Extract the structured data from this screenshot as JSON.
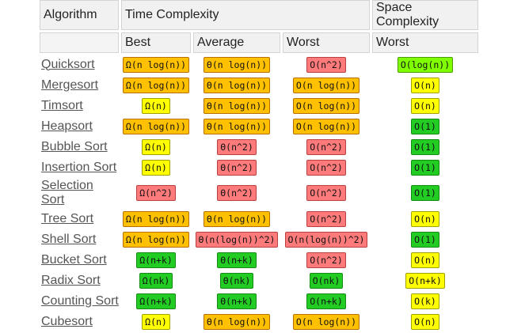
{
  "headers": {
    "algorithm": "Algorithm",
    "time_complexity": "Time Complexity",
    "space_complexity": "Space Complexity",
    "best": "Best",
    "average": "Average",
    "worst": "Worst",
    "space_worst": "Worst"
  },
  "colors": {
    "orange": "#ffc000",
    "yellow": "#ffff00",
    "red": "#ff7a7a",
    "green": "#22cc22",
    "lime": "#80ff00"
  },
  "rows": [
    {
      "name": "Quicksort",
      "best": {
        "v": "Ω(n log(n))",
        "c": "orange"
      },
      "average": {
        "v": "Θ(n log(n))",
        "c": "orange"
      },
      "worst": {
        "v": "O(n^2)",
        "c": "red"
      },
      "space": {
        "v": "O(log(n))",
        "c": "lime"
      }
    },
    {
      "name": "Mergesort",
      "best": {
        "v": "Ω(n log(n))",
        "c": "orange"
      },
      "average": {
        "v": "Θ(n log(n))",
        "c": "orange"
      },
      "worst": {
        "v": "O(n log(n))",
        "c": "orange"
      },
      "space": {
        "v": "O(n)",
        "c": "yellow"
      }
    },
    {
      "name": "Timsort",
      "best": {
        "v": "Ω(n)",
        "c": "yellow"
      },
      "average": {
        "v": "Θ(n log(n))",
        "c": "orange"
      },
      "worst": {
        "v": "O(n log(n))",
        "c": "orange"
      },
      "space": {
        "v": "O(n)",
        "c": "yellow"
      }
    },
    {
      "name": "Heapsort",
      "best": {
        "v": "Ω(n log(n))",
        "c": "orange"
      },
      "average": {
        "v": "Θ(n log(n))",
        "c": "orange"
      },
      "worst": {
        "v": "O(n log(n))",
        "c": "orange"
      },
      "space": {
        "v": "O(1)",
        "c": "green"
      }
    },
    {
      "name": "Bubble Sort",
      "best": {
        "v": "Ω(n)",
        "c": "yellow"
      },
      "average": {
        "v": "Θ(n^2)",
        "c": "red"
      },
      "worst": {
        "v": "O(n^2)",
        "c": "red"
      },
      "space": {
        "v": "O(1)",
        "c": "green"
      }
    },
    {
      "name": "Insertion Sort",
      "best": {
        "v": "Ω(n)",
        "c": "yellow"
      },
      "average": {
        "v": "Θ(n^2)",
        "c": "red"
      },
      "worst": {
        "v": "O(n^2)",
        "c": "red"
      },
      "space": {
        "v": "O(1)",
        "c": "green"
      }
    },
    {
      "name": "Selection Sort",
      "best": {
        "v": "Ω(n^2)",
        "c": "red"
      },
      "average": {
        "v": "Θ(n^2)",
        "c": "red"
      },
      "worst": {
        "v": "O(n^2)",
        "c": "red"
      },
      "space": {
        "v": "O(1)",
        "c": "green"
      }
    },
    {
      "name": "Tree Sort",
      "best": {
        "v": "Ω(n log(n))",
        "c": "orange"
      },
      "average": {
        "v": "Θ(n log(n))",
        "c": "orange"
      },
      "worst": {
        "v": "O(n^2)",
        "c": "red"
      },
      "space": {
        "v": "O(n)",
        "c": "yellow"
      }
    },
    {
      "name": "Shell Sort",
      "best": {
        "v": "Ω(n log(n))",
        "c": "orange"
      },
      "average": {
        "v": "Θ(n(log(n))^2)",
        "c": "red"
      },
      "worst": {
        "v": "O(n(log(n))^2)",
        "c": "red"
      },
      "space": {
        "v": "O(1)",
        "c": "green"
      }
    },
    {
      "name": "Bucket Sort",
      "best": {
        "v": "Ω(n+k)",
        "c": "green"
      },
      "average": {
        "v": "Θ(n+k)",
        "c": "green"
      },
      "worst": {
        "v": "O(n^2)",
        "c": "red"
      },
      "space": {
        "v": "O(n)",
        "c": "yellow"
      }
    },
    {
      "name": "Radix Sort",
      "best": {
        "v": "Ω(nk)",
        "c": "green"
      },
      "average": {
        "v": "Θ(nk)",
        "c": "green"
      },
      "worst": {
        "v": "O(nk)",
        "c": "green"
      },
      "space": {
        "v": "O(n+k)",
        "c": "yellow"
      }
    },
    {
      "name": "Counting Sort",
      "best": {
        "v": "Ω(n+k)",
        "c": "green"
      },
      "average": {
        "v": "Θ(n+k)",
        "c": "green"
      },
      "worst": {
        "v": "O(n+k)",
        "c": "green"
      },
      "space": {
        "v": "O(k)",
        "c": "yellow"
      }
    },
    {
      "name": "Cubesort",
      "best": {
        "v": "Ω(n)",
        "c": "yellow"
      },
      "average": {
        "v": "Θ(n log(n))",
        "c": "orange"
      },
      "worst": {
        "v": "O(n log(n))",
        "c": "orange"
      },
      "space": {
        "v": "O(n)",
        "c": "yellow"
      }
    }
  ]
}
